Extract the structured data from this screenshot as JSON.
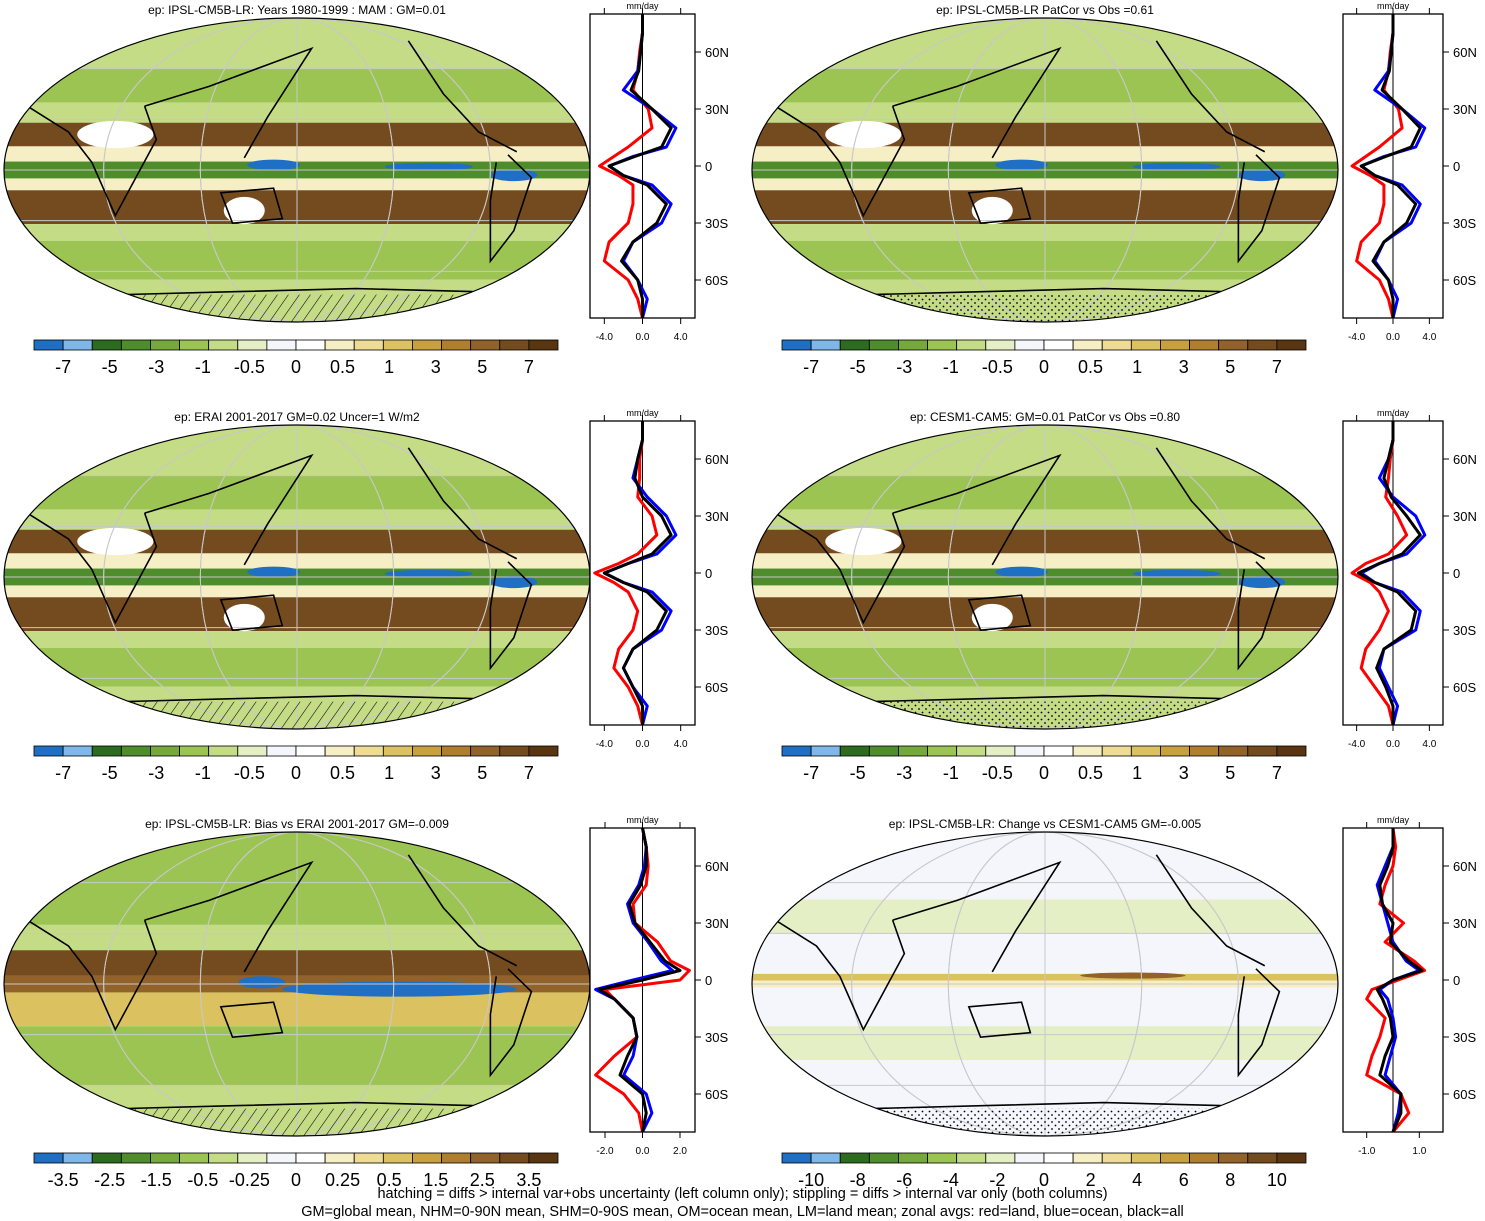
{
  "panels": [
    {
      "title": "ep: IPSL-CM5B-LR: Years 1980-1999 : MAM : GM=0.01",
      "map_kind": "climatology",
      "hatched_antarctic": true,
      "zonal_unit": "mm/day",
      "zonal_x_ticks": [
        "-4.0",
        "0.0",
        "4.0"
      ],
      "zonal_y_ticks": [
        "60N",
        "30N",
        "0",
        "30S",
        "60S"
      ],
      "colorbar_labels": [
        "-7",
        "-5",
        "-3",
        "-1",
        "-0.5",
        "0",
        "0.5",
        "1",
        "3",
        "5",
        "7"
      ]
    },
    {
      "title": "ep: IPSL-CM5B-LR PatCor vs Obs =0.61",
      "map_kind": "climatology",
      "hatched_antarctic": false,
      "zonal_unit": "mm/day",
      "zonal_x_ticks": [
        "-4.0",
        "0.0",
        "4.0"
      ],
      "zonal_y_ticks": [
        "60N",
        "30N",
        "0",
        "30S",
        "60S"
      ],
      "colorbar_labels": [
        "-7",
        "-5",
        "-3",
        "-1",
        "-0.5",
        "0",
        "0.5",
        "1",
        "3",
        "5",
        "7"
      ]
    },
    {
      "title": "ep: ERAI 2001-2017 GM=0.02 Uncer=1 W/m2",
      "map_kind": "climatology",
      "hatched_antarctic": true,
      "zonal_unit": "mm/day",
      "zonal_x_ticks": [
        "-4.0",
        "0.0",
        "4.0"
      ],
      "zonal_y_ticks": [
        "60N",
        "30N",
        "0",
        "30S",
        "60S"
      ],
      "colorbar_labels": [
        "-7",
        "-5",
        "-3",
        "-1",
        "-0.5",
        "0",
        "0.5",
        "1",
        "3",
        "5",
        "7"
      ]
    },
    {
      "title": "ep: CESM1-CAM5: GM=0.01 PatCor vs Obs =0.80",
      "map_kind": "climatology",
      "hatched_antarctic": false,
      "zonal_unit": "mm/day",
      "zonal_x_ticks": [
        "-4.0",
        "0.0",
        "4.0"
      ],
      "zonal_y_ticks": [
        "60N",
        "30N",
        "0",
        "30S",
        "60S"
      ],
      "colorbar_labels": [
        "-7",
        "-5",
        "-3",
        "-1",
        "-0.5",
        "0",
        "0.5",
        "1",
        "3",
        "5",
        "7"
      ]
    },
    {
      "title": "ep: IPSL-CM5B-LR: Bias vs ERAI 2001-2017 GM=-0.009",
      "map_kind": "bias",
      "hatched_antarctic": true,
      "zonal_unit": "mm/day",
      "zonal_x_ticks": [
        "-2.0",
        "0.0",
        "2.0"
      ],
      "zonal_y_ticks": [
        "60N",
        "30N",
        "0",
        "30S",
        "60S"
      ],
      "colorbar_labels": [
        "-3.5",
        "-2.5",
        "-1.5",
        "-0.5",
        "-0.25",
        "0",
        "0.25",
        "0.5",
        "1.5",
        "2.5",
        "3.5"
      ]
    },
    {
      "title": "ep: IPSL-CM5B-LR: Change vs CESM1-CAM5 GM=-0.005",
      "map_kind": "change",
      "hatched_antarctic": false,
      "zonal_unit": "mm/day",
      "zonal_x_ticks": [
        "-1.0",
        "1.0"
      ],
      "zonal_y_ticks": [
        "60N",
        "30N",
        "0",
        "30S",
        "60S"
      ],
      "colorbar_labels": [
        "-10",
        "-8",
        "-6",
        "-4",
        "-2",
        "0",
        "2",
        "4",
        "6",
        "8",
        "10"
      ]
    }
  ],
  "colorbar_colors": [
    "#1f6fc4",
    "#7fb8e8",
    "#2d6b1e",
    "#4e8c2c",
    "#76a83b",
    "#9cc453",
    "#c4dc86",
    "#e4efc6",
    "#f4f6fb",
    "#ffffff",
    "#f6eec4",
    "#eedc94",
    "#dcc160",
    "#c8a03e",
    "#b07f2e",
    "#91622a",
    "#744a1f",
    "#5a3512"
  ],
  "line_colors": {
    "land": "#ff0000",
    "ocean": "#0000ff",
    "all": "#000000"
  },
  "footer": {
    "line1": "hatching = diffs > internal var+obs uncertainty (left column only); stippling = diffs > internal var only (both columns)",
    "line2": "GM=global mean, NHM=0-90N mean, SHM=0-90S mean, OM=ocean mean, LM=land mean; zonal avgs: red=land, blue=ocean, black=all"
  },
  "chart_data": [
    {
      "type": "line",
      "title": "ep: IPSL-CM5B-LR: Years 1980-1999 : MAM : GM=0.01",
      "xlabel": "mm/day",
      "xlim": [
        -5.5,
        5.5
      ],
      "ylim": [
        -80,
        80
      ],
      "y": [
        80,
        70,
        60,
        50,
        40,
        30,
        20,
        10,
        5,
        0,
        -5,
        -10,
        -20,
        -30,
        -40,
        -50,
        -60,
        -70,
        -80
      ],
      "series": [
        {
          "name": "land",
          "values": [
            0,
            0,
            -0.3,
            -0.5,
            -1.0,
            0.6,
            1.0,
            -1.5,
            -3.0,
            -4.5,
            -2.5,
            -1.0,
            -1.0,
            -1.5,
            -3.5,
            -4.0,
            -1.5,
            -0.5,
            0
          ]
        },
        {
          "name": "ocean",
          "values": [
            0,
            0,
            -0.2,
            -0.5,
            -2.0,
            1.0,
            3.5,
            2.5,
            -1.0,
            -3.5,
            -2.0,
            1.0,
            3.0,
            2.0,
            -1.0,
            -2.0,
            -0.5,
            0.5,
            0
          ]
        },
        {
          "name": "all",
          "values": [
            0,
            0,
            -0.2,
            -0.4,
            -1.2,
            1.0,
            3.0,
            2.0,
            -0.8,
            -3.5,
            -2.0,
            0.5,
            2.5,
            1.5,
            -1.0,
            -2.2,
            -0.5,
            0,
            0
          ]
        }
      ]
    },
    {
      "type": "line",
      "title": "ep: IPSL-CM5B-LR PatCor vs Obs =0.61",
      "xlabel": "mm/day",
      "xlim": [
        -5.5,
        5.5
      ],
      "ylim": [
        -80,
        80
      ],
      "y": [
        80,
        70,
        60,
        50,
        40,
        30,
        20,
        10,
        5,
        0,
        -5,
        -10,
        -20,
        -30,
        -40,
        -50,
        -60,
        -70,
        -80
      ],
      "series": [
        {
          "name": "land",
          "values": [
            0,
            0,
            -0.3,
            -0.5,
            -1.0,
            0.6,
            1.0,
            -1.5,
            -3.0,
            -4.5,
            -2.5,
            -1.0,
            -1.0,
            -1.5,
            -3.5,
            -4.0,
            -1.5,
            -0.5,
            0
          ]
        },
        {
          "name": "ocean",
          "values": [
            0,
            0,
            -0.2,
            -0.5,
            -2.0,
            1.0,
            3.5,
            2.5,
            -1.0,
            -3.5,
            -2.0,
            1.0,
            3.0,
            2.0,
            -1.0,
            -2.0,
            -0.5,
            0.5,
            0
          ]
        },
        {
          "name": "all",
          "values": [
            0,
            0,
            -0.2,
            -0.4,
            -1.2,
            1.0,
            3.0,
            2.0,
            -0.8,
            -3.5,
            -2.0,
            0.5,
            2.5,
            1.5,
            -1.0,
            -2.2,
            -0.5,
            0,
            0
          ]
        }
      ]
    },
    {
      "type": "line",
      "title": "ep: ERAI 2001-2017 GM=0.02 Uncer=1 W/m2",
      "xlabel": "mm/day",
      "xlim": [
        -5.5,
        5.5
      ],
      "ylim": [
        -80,
        80
      ],
      "y": [
        80,
        70,
        60,
        50,
        40,
        30,
        20,
        10,
        5,
        0,
        -5,
        -10,
        -20,
        -30,
        -40,
        -50,
        -60,
        -70,
        -80
      ],
      "series": [
        {
          "name": "land",
          "values": [
            0,
            0,
            -0.3,
            -0.3,
            -0.5,
            1.0,
            1.5,
            -0.5,
            -2.5,
            -5.0,
            -3.0,
            -1.5,
            -0.5,
            -1.0,
            -2.5,
            -3.0,
            -1.5,
            -0.5,
            0
          ]
        },
        {
          "name": "ocean",
          "values": [
            0,
            0,
            -0.5,
            -1.0,
            0.5,
            2.5,
            3.5,
            1.5,
            -1.5,
            -4.0,
            -2.0,
            1.0,
            3.0,
            2.0,
            -1.0,
            -2.0,
            -1.0,
            0.5,
            0
          ]
        },
        {
          "name": "all",
          "values": [
            0,
            0,
            -0.5,
            -0.8,
            0.0,
            2.0,
            3.0,
            1.0,
            -1.5,
            -4.0,
            -2.0,
            0.5,
            2.5,
            1.5,
            -1.0,
            -2.0,
            -1.0,
            0,
            0
          ]
        }
      ]
    },
    {
      "type": "line",
      "title": "ep: CESM1-CAM5: GM=0.01 PatCor vs Obs =0.80",
      "xlabel": "mm/day",
      "xlim": [
        -5.5,
        5.5
      ],
      "ylim": [
        -80,
        80
      ],
      "y": [
        80,
        70,
        60,
        50,
        40,
        30,
        20,
        10,
        5,
        0,
        -5,
        -10,
        -20,
        -30,
        -40,
        -50,
        -60,
        -70,
        -80
      ],
      "series": [
        {
          "name": "land",
          "values": [
            0,
            0,
            -0.3,
            -0.5,
            -0.8,
            0.5,
            1.5,
            -0.5,
            -3.0,
            -4.5,
            -2.5,
            -1.5,
            -0.5,
            -1.5,
            -3.0,
            -3.5,
            -2.0,
            -0.5,
            0
          ]
        },
        {
          "name": "ocean",
          "values": [
            0,
            0,
            -0.5,
            -1.5,
            0.0,
            2.5,
            3.5,
            1.5,
            -1.5,
            -3.5,
            -2.0,
            1.0,
            3.0,
            2.5,
            -1.0,
            -1.5,
            -0.5,
            0.5,
            0
          ]
        },
        {
          "name": "all",
          "values": [
            0,
            0,
            -0.5,
            -1.0,
            -0.2,
            1.5,
            3.0,
            1.0,
            -1.5,
            -3.8,
            -2.0,
            0.5,
            2.5,
            2.0,
            -1.0,
            -1.8,
            -0.8,
            0,
            0
          ]
        }
      ]
    },
    {
      "type": "line",
      "title": "ep: IPSL-CM5B-LR: Bias vs ERAI 2001-2017 GM=-0.009",
      "xlabel": "mm/day",
      "xlim": [
        -2.8,
        2.8
      ],
      "ylim": [
        -80,
        80
      ],
      "y": [
        80,
        70,
        60,
        50,
        40,
        30,
        20,
        10,
        5,
        0,
        -5,
        -10,
        -20,
        -30,
        -40,
        -50,
        -60,
        -70,
        -80
      ],
      "series": [
        {
          "name": "land",
          "values": [
            0,
            0.2,
            0.3,
            0.2,
            -0.5,
            -0.4,
            0.8,
            1.5,
            2.5,
            2.0,
            -2.0,
            -1.5,
            -0.5,
            -0.3,
            -1.5,
            -2.5,
            -1.0,
            -0.2,
            0
          ]
        },
        {
          "name": "ocean",
          "values": [
            0,
            0.2,
            0.1,
            -0.2,
            -0.8,
            -0.5,
            0.3,
            1.0,
            1.6,
            -0.5,
            -2.5,
            -1.5,
            -0.5,
            -0.3,
            -0.5,
            -1.0,
            0.2,
            0.5,
            0
          ]
        },
        {
          "name": "all",
          "values": [
            0,
            0.2,
            0.2,
            -0.1,
            -0.7,
            -0.4,
            0.4,
            1.2,
            2.0,
            0.0,
            -2.3,
            -1.5,
            -0.5,
            -0.3,
            -0.8,
            -1.2,
            0.0,
            0.2,
            0
          ]
        }
      ]
    },
    {
      "type": "line",
      "title": "ep: IPSL-CM5B-LR: Change vs CESM1-CAM5 GM=-0.005",
      "xlabel": "mm/day",
      "xlim": [
        -1.9,
        1.9
      ],
      "ylim": [
        -80,
        80
      ],
      "y": [
        80,
        70,
        60,
        50,
        40,
        30,
        20,
        10,
        5,
        0,
        -5,
        -10,
        -20,
        -30,
        -40,
        -50,
        -60,
        -70,
        -80
      ],
      "series": [
        {
          "name": "land",
          "values": [
            0,
            0.1,
            0.0,
            -0.3,
            -0.5,
            0.4,
            -0.3,
            0.8,
            1.2,
            0.2,
            -0.8,
            -1.0,
            -0.3,
            -0.5,
            -0.8,
            -1.0,
            0.3,
            0.6,
            0
          ]
        },
        {
          "name": "ocean",
          "values": [
            0,
            0.0,
            -0.3,
            -0.6,
            -0.4,
            -0.2,
            0.0,
            0.5,
            1.0,
            0.0,
            -0.5,
            -0.2,
            0.0,
            0.1,
            -0.1,
            -0.3,
            0.3,
            0.2,
            0
          ]
        },
        {
          "name": "all",
          "values": [
            0,
            0.0,
            -0.2,
            -0.5,
            -0.4,
            0.0,
            -0.1,
            0.6,
            1.1,
            0.0,
            -0.6,
            -0.4,
            -0.1,
            0.0,
            -0.3,
            -0.5,
            0.3,
            0.3,
            0
          ]
        }
      ]
    }
  ]
}
